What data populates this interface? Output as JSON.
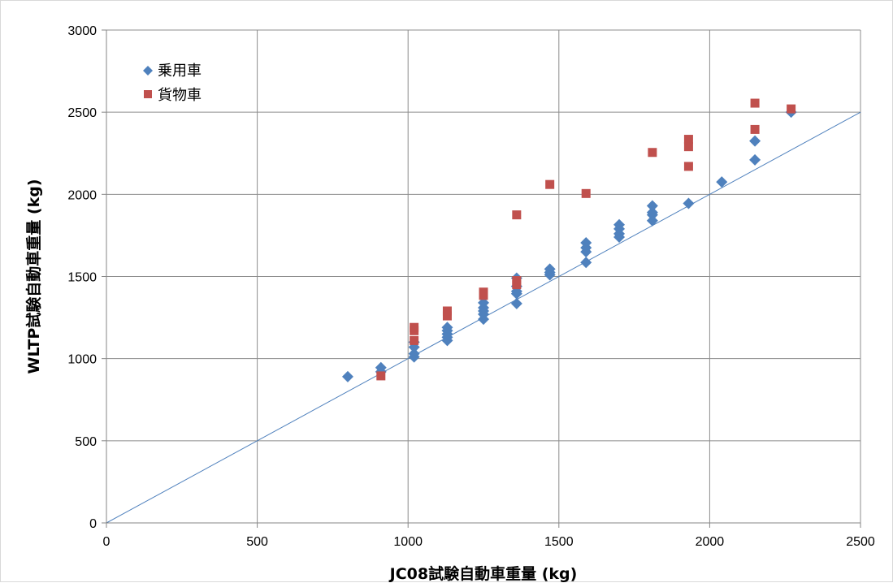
{
  "chart_data": {
    "type": "scatter",
    "xlabel": "JC08試験自動車重量 (kg)",
    "ylabel": "WLTP試験自動車重量 (kg)",
    "xlim": [
      0,
      2500
    ],
    "ylim": [
      0,
      3000
    ],
    "xticks": [
      "0",
      "500",
      "1000",
      "1500",
      "2000",
      "2500"
    ],
    "yticks": [
      "0",
      "500",
      "1000",
      "1500",
      "2000",
      "2500",
      "3000"
    ],
    "grid": true,
    "legend_position": "top-left",
    "reference_line": {
      "x": [
        0,
        2500
      ],
      "y": [
        0,
        2500
      ],
      "color": "#4f81bd"
    },
    "series": [
      {
        "name": "乗用車",
        "marker": "diamond",
        "color": "#4f81bd",
        "points": [
          [
            800,
            890
          ],
          [
            910,
            920
          ],
          [
            910,
            945
          ],
          [
            1020,
            1010
          ],
          [
            1020,
            1030
          ],
          [
            1020,
            1070
          ],
          [
            1020,
            1100
          ],
          [
            1130,
            1110
          ],
          [
            1130,
            1130
          ],
          [
            1130,
            1150
          ],
          [
            1130,
            1170
          ],
          [
            1130,
            1190
          ],
          [
            1250,
            1240
          ],
          [
            1250,
            1270
          ],
          [
            1250,
            1290
          ],
          [
            1250,
            1310
          ],
          [
            1250,
            1340
          ],
          [
            1360,
            1335
          ],
          [
            1360,
            1395
          ],
          [
            1360,
            1410
          ],
          [
            1360,
            1440
          ],
          [
            1360,
            1490
          ],
          [
            1470,
            1510
          ],
          [
            1470,
            1525
          ],
          [
            1470,
            1545
          ],
          [
            1590,
            1585
          ],
          [
            1590,
            1650
          ],
          [
            1590,
            1675
          ],
          [
            1590,
            1705
          ],
          [
            1700,
            1740
          ],
          [
            1700,
            1760
          ],
          [
            1700,
            1790
          ],
          [
            1700,
            1815
          ],
          [
            1810,
            1840
          ],
          [
            1810,
            1875
          ],
          [
            1810,
            1890
          ],
          [
            1810,
            1930
          ],
          [
            1930,
            1945
          ],
          [
            2040,
            2075
          ],
          [
            2150,
            2210
          ],
          [
            2150,
            2325
          ],
          [
            2270,
            2500
          ]
        ]
      },
      {
        "name": "貨物車",
        "marker": "square",
        "color": "#c0504d",
        "points": [
          [
            910,
            895
          ],
          [
            1020,
            1110
          ],
          [
            1020,
            1170
          ],
          [
            1020,
            1190
          ],
          [
            1130,
            1260
          ],
          [
            1130,
            1290
          ],
          [
            1250,
            1385
          ],
          [
            1250,
            1405
          ],
          [
            1360,
            1450
          ],
          [
            1360,
            1475
          ],
          [
            1360,
            1875
          ],
          [
            1470,
            2060
          ],
          [
            1590,
            2005
          ],
          [
            1810,
            2255
          ],
          [
            1930,
            2170
          ],
          [
            1930,
            2290
          ],
          [
            1930,
            2335
          ],
          [
            2150,
            2395
          ],
          [
            2150,
            2555
          ],
          [
            2270,
            2520
          ]
        ]
      }
    ]
  }
}
